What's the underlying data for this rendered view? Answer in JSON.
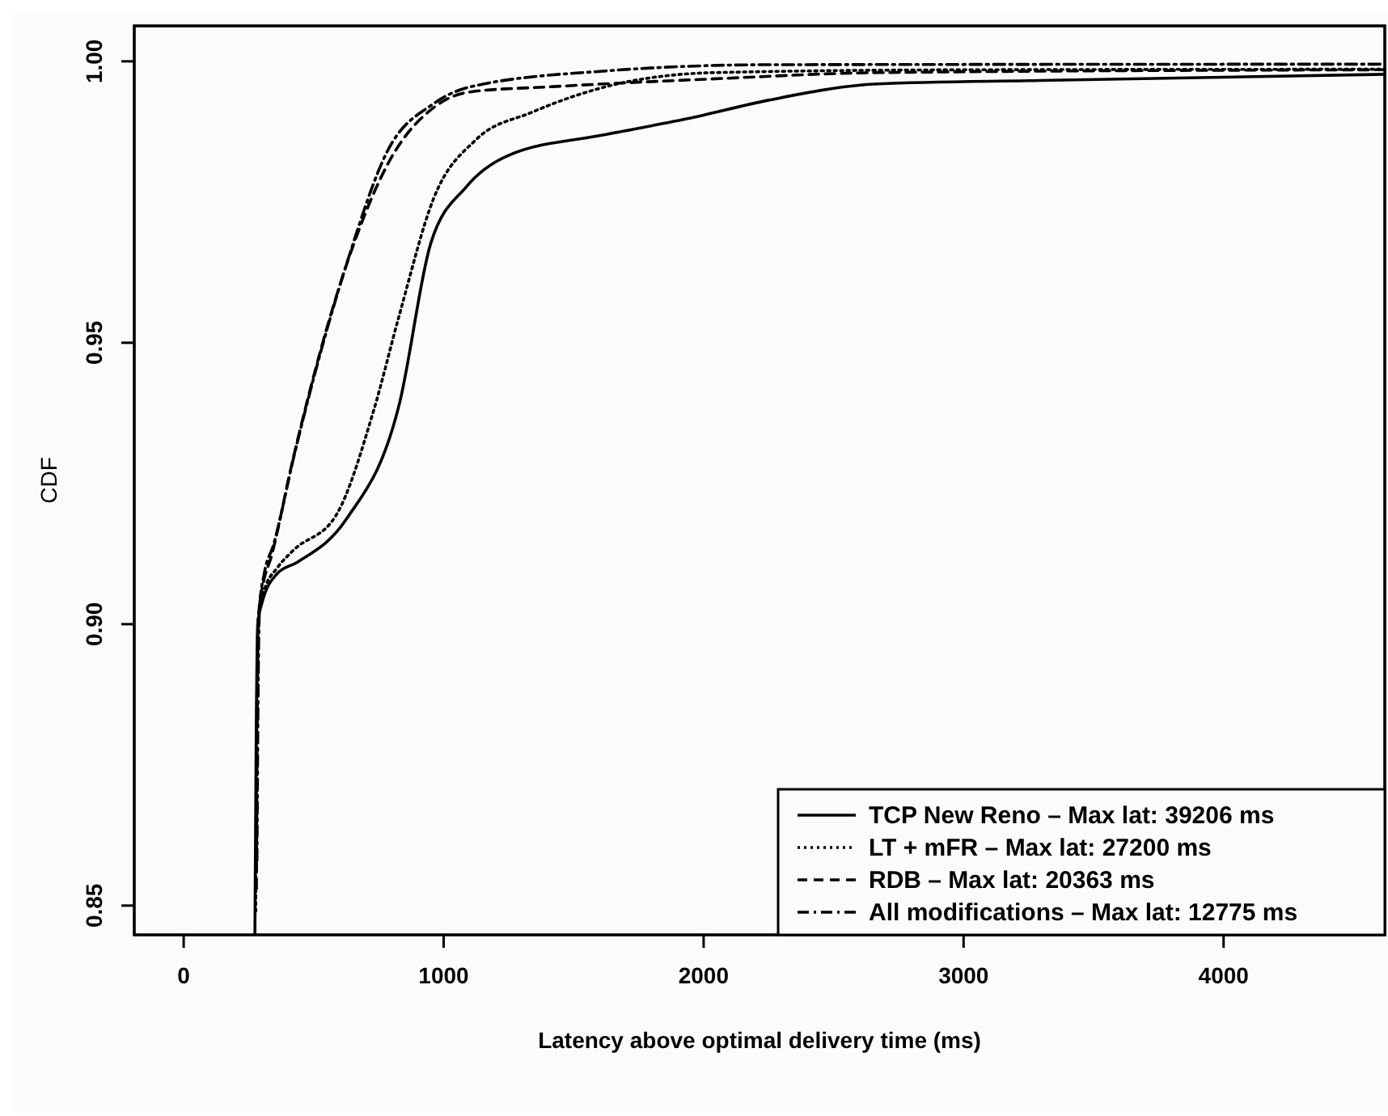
{
  "chart_data": {
    "type": "line",
    "xlabel": "Latency above optimal delivery time (ms)",
    "ylabel": "CDF",
    "xlim": [
      -190,
      4620
    ],
    "ylim": [
      0.8448,
      1.0063
    ],
    "xticks": [
      0,
      1000,
      2000,
      3000,
      4000
    ],
    "yticks": [
      {
        "value": 0.85,
        "label": "0.85"
      },
      {
        "value": 0.9,
        "label": "0.90"
      },
      {
        "value": 0.95,
        "label": "0.95"
      },
      {
        "value": 1.0,
        "label": "1.00"
      }
    ],
    "grid": false,
    "legend": "bottom right",
    "series": [
      {
        "name": "TCP New Reno – Max lat:  39206 ms",
        "color": "#000000",
        "line_style": "solid",
        "x": [
          274,
          279,
          285,
          300,
          360,
          437,
          625,
          831,
          950,
          1087,
          1250,
          1625,
          1937,
          2250,
          2670,
          3294,
          4620
        ],
        "values": [
          0.8448,
          0.88,
          0.9,
          0.9036,
          0.909,
          0.911,
          0.9186,
          0.9394,
          0.9676,
          0.9777,
          0.9833,
          0.987,
          0.9898,
          0.9931,
          0.996,
          0.9966,
          0.9977
        ]
      },
      {
        "name": "LT + mFR – Max lat:  27200 ms",
        "color": "#000000",
        "line_style": "dotted",
        "x": [
          277,
          281,
          287,
          310,
          360,
          419,
          587,
          731,
          830,
          962,
          1125,
          1337,
          1625,
          2044,
          3000,
          4620
        ],
        "values": [
          0.849,
          0.882,
          0.901,
          0.906,
          0.91,
          0.913,
          0.9194,
          0.938,
          0.955,
          0.9757,
          0.9861,
          0.9909,
          0.9955,
          0.998,
          0.9985,
          0.9986
        ]
      },
      {
        "name": "RDB – Max lat: 20363 ms",
        "color": "#000000",
        "line_style": "dashed",
        "x": [
          280,
          283,
          289,
          305,
          337,
          419,
          637,
          794,
          962,
          1106,
          1419,
          2044,
          2670,
          4620
        ],
        "values": [
          0.853,
          0.884,
          0.902,
          0.907,
          0.912,
          0.929,
          0.9653,
          0.9825,
          0.9918,
          0.9946,
          0.9955,
          0.9969,
          0.998,
          0.9985
        ]
      },
      {
        "name": "All modifications – Max lat:  12775 ms",
        "color": "#000000",
        "line_style": "dashdot",
        "x": [
          282,
          286,
          292,
          310,
          345,
          425,
          637,
          781,
          962,
          1106,
          1625,
          2250,
          4620
        ],
        "values": [
          0.858,
          0.886,
          0.903,
          0.909,
          0.914,
          0.93,
          0.9655,
          0.9838,
          0.9925,
          0.9955,
          0.9983,
          0.9994,
          0.9995
        ]
      }
    ]
  }
}
